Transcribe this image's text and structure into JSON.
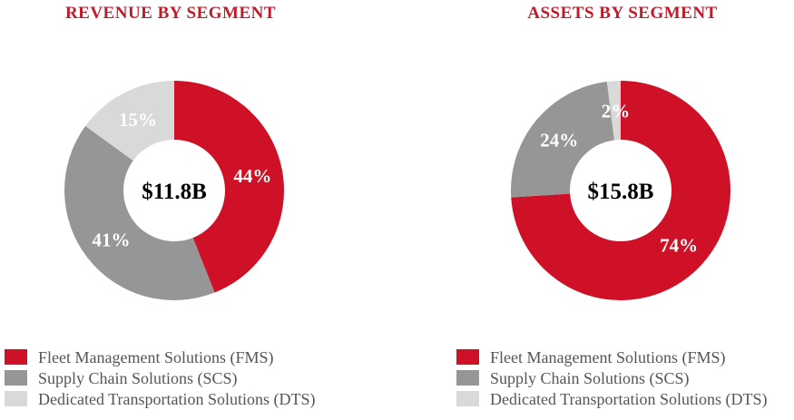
{
  "page": {
    "background": "#FFFFFF"
  },
  "theme": {
    "title_color": "#C01A2B",
    "legend_text_color": "#53555A",
    "percent_label_color": "#FFFFFF",
    "center_label_color": "#000000"
  },
  "chart_data": [
    {
      "type": "pie",
      "subtype": "donut",
      "title": "REVENUE BY SEGMENT",
      "center_label": "$11.8B",
      "slice_ids": [
        "fms",
        "scs",
        "dts"
      ],
      "labels": [
        "Fleet Management Solutions (FMS)",
        "Supply Chain Solutions (SCS)",
        "Dedicated Transportation Solutions (DTS)"
      ],
      "values": [
        44,
        41,
        15
      ],
      "value_labels": [
        "44%",
        "41%",
        "15%"
      ],
      "colors": [
        "#CE1126",
        "#969696",
        "#D9D9D9"
      ],
      "start_angle_deg": 0,
      "direction": "clockwise",
      "legend_position": "bottom-left"
    },
    {
      "type": "pie",
      "subtype": "donut",
      "title": "ASSETS BY SEGMENT",
      "center_label": "$15.8B",
      "slice_ids": [
        "fms",
        "scs",
        "dts"
      ],
      "labels": [
        "Fleet Management Solutions (FMS)",
        "Supply Chain Solutions (SCS)",
        "Dedicated Transportation Solutions (DTS)"
      ],
      "values": [
        74,
        24,
        2
      ],
      "value_labels": [
        "74%",
        "24%",
        "2%"
      ],
      "colors": [
        "#CE1126",
        "#969696",
        "#D9D9D9"
      ],
      "start_angle_deg": 0,
      "direction": "clockwise",
      "legend_position": "bottom-left"
    }
  ]
}
